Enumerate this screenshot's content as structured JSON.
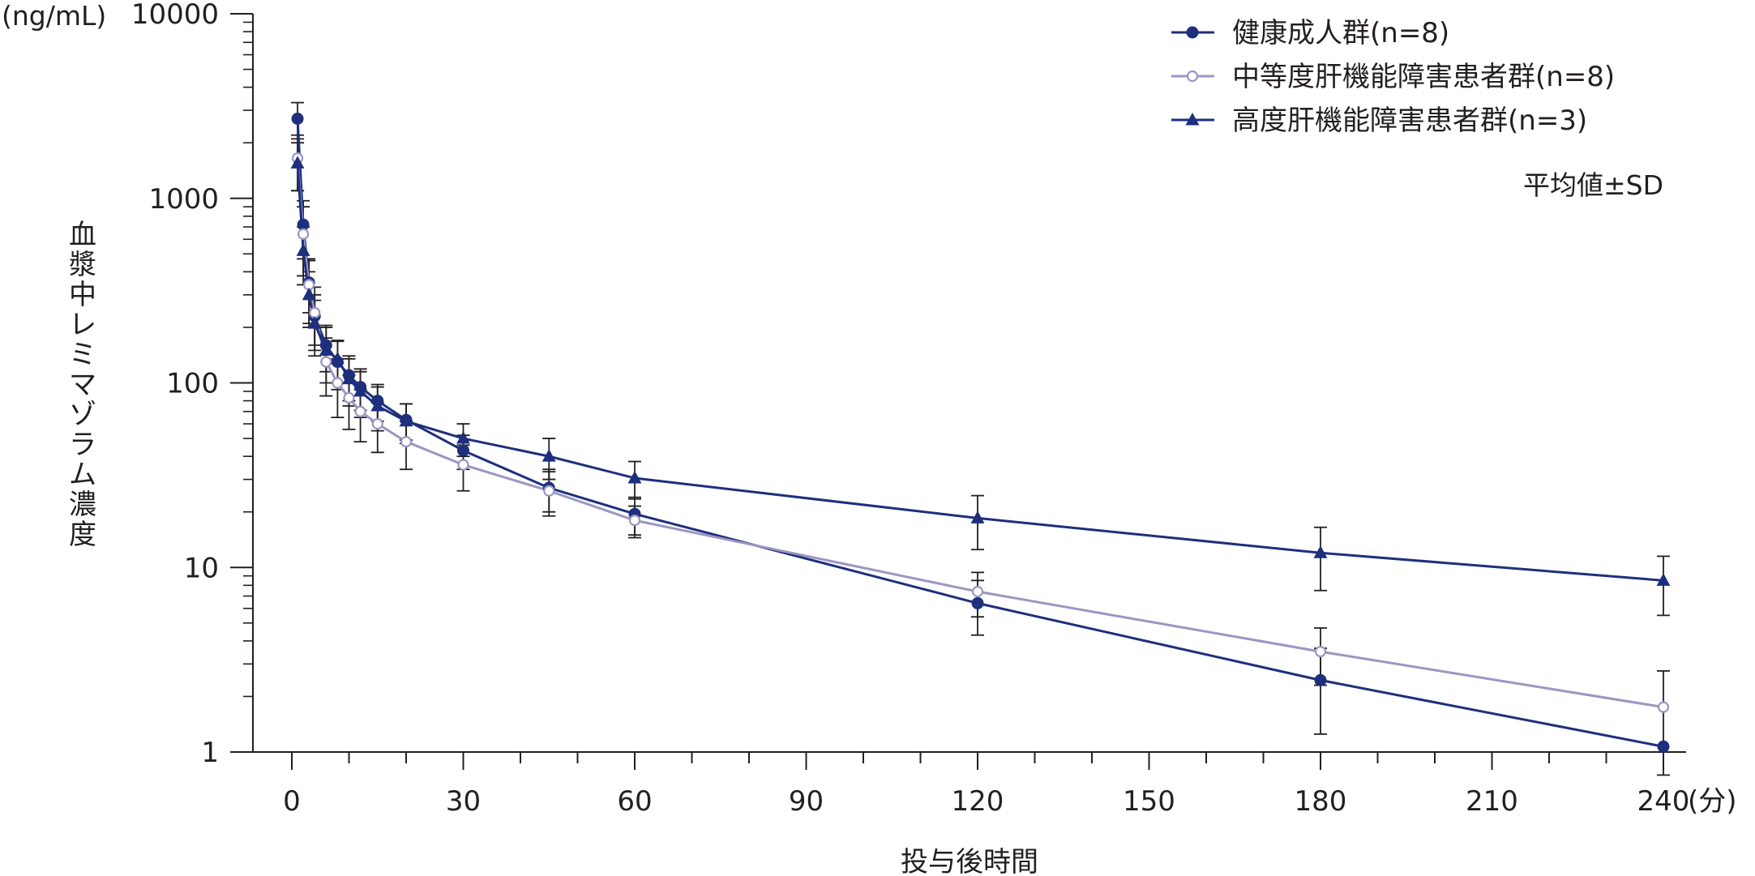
{
  "chart_data": {
    "type": "line",
    "y_scale": "log",
    "y_unit": "(ng/mL)",
    "ylabel": "血漿中レミマゾラム濃度",
    "xlabel": "投与後時間",
    "x_unit": "(分)",
    "xlim": [
      0,
      240
    ],
    "ylim": [
      1,
      10000
    ],
    "x_ticks": [
      "0",
      "30",
      "60",
      "90",
      "120",
      "150",
      "180",
      "210",
      "240"
    ],
    "y_ticks": [
      "1",
      "10",
      "100",
      "1000",
      "10000"
    ],
    "annotation": "平均値±SD",
    "legend_position": "top-right",
    "series": [
      {
        "name": "健康成人群(n=8)",
        "color": "#1e2f7d",
        "marker": "filled-circle",
        "x": [
          1,
          2,
          3,
          4,
          6,
          8,
          10,
          12,
          15,
          20,
          30,
          45,
          60,
          120,
          180,
          240
        ],
        "y": [
          2700,
          720,
          350,
          230,
          160,
          130,
          110,
          95,
          80,
          63,
          43,
          27,
          19.5,
          6.4,
          2.45,
          1.07
        ],
        "err": [
          600,
          250,
          110,
          70,
          45,
          38,
          30,
          24,
          18,
          14,
          9,
          7,
          4.5,
          2.1,
          1.2,
          0
        ]
      },
      {
        "name": "中等度肝機能障害患者群(n=8)",
        "color": "#9b96c2",
        "marker": "open-circle",
        "x": [
          1,
          2,
          3,
          4,
          6,
          8,
          10,
          12,
          15,
          20,
          30,
          45,
          60,
          120,
          180,
          240
        ],
        "y": [
          1650,
          640,
          340,
          240,
          130,
          100,
          83,
          70,
          60,
          48,
          36,
          26,
          18,
          7.4,
          3.5,
          1.75
        ],
        "err": [
          550,
          260,
          130,
          90,
          45,
          35,
          27,
          22,
          18,
          14,
          10,
          7,
          3.5,
          2.0,
          1.2,
          1.0
        ]
      },
      {
        "name": "高度肝機能障害患者群(n=3)",
        "color": "#1e2f7d",
        "marker": "filled-triangle",
        "x": [
          1,
          2,
          3,
          4,
          6,
          8,
          10,
          12,
          15,
          20,
          30,
          45,
          60,
          120,
          180,
          240
        ],
        "y": [
          1550,
          520,
          300,
          210,
          150,
          135,
          105,
          90,
          75,
          62,
          50,
          40,
          30.5,
          18.5,
          12,
          8.5
        ],
        "err": [
          450,
          180,
          100,
          70,
          50,
          35,
          30,
          25,
          20,
          15,
          10,
          10,
          7,
          6,
          4.5,
          3
        ]
      }
    ]
  }
}
